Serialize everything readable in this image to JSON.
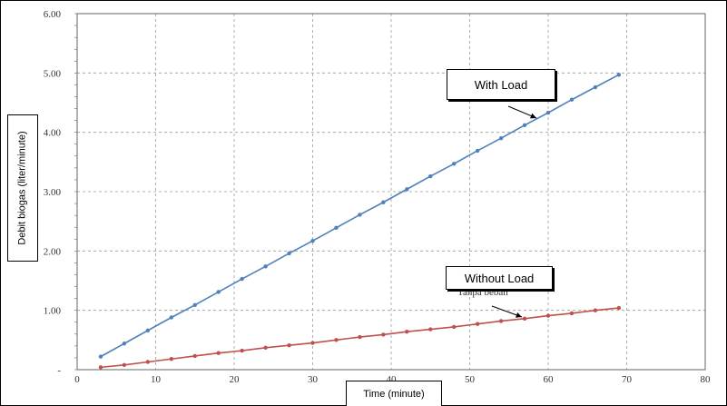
{
  "chart_data": {
    "type": "line",
    "xlabel": "Time (minute)",
    "ylabel": "Debit biogas (liter/minute)",
    "xlim": [
      0,
      80
    ],
    "ylim": [
      0,
      6
    ],
    "xticks": [
      0,
      10,
      20,
      30,
      40,
      50,
      60,
      70,
      80
    ],
    "yticks": [
      "-",
      "1.00",
      "2.00",
      "3.00",
      "4.00",
      "5.00",
      "6.00"
    ],
    "grid": true,
    "series": [
      {
        "name": "With Load",
        "color": "#4f81bd",
        "x": [
          3,
          6,
          9,
          12,
          15,
          18,
          21,
          24,
          27,
          30,
          33,
          36,
          39,
          42,
          45,
          48,
          51,
          54,
          57,
          60,
          63,
          66,
          69
        ],
        "y": [
          0.22,
          0.44,
          0.66,
          0.88,
          1.09,
          1.31,
          1.53,
          1.74,
          1.96,
          2.17,
          2.39,
          2.61,
          2.82,
          3.04,
          3.26,
          3.47,
          3.69,
          3.9,
          4.12,
          4.33,
          4.55,
          4.76,
          4.97
        ]
      },
      {
        "name": "Without Load",
        "color": "#c0504d",
        "x": [
          3,
          6,
          9,
          12,
          15,
          18,
          21,
          24,
          27,
          30,
          33,
          36,
          39,
          42,
          45,
          48,
          51,
          54,
          57,
          60,
          63,
          66,
          69
        ],
        "y": [
          0.04,
          0.08,
          0.13,
          0.18,
          0.23,
          0.28,
          0.32,
          0.37,
          0.41,
          0.45,
          0.5,
          0.55,
          0.59,
          0.64,
          0.68,
          0.72,
          0.77,
          0.82,
          0.86,
          0.91,
          0.95,
          1.0,
          1.04
        ]
      }
    ],
    "annotations": {
      "overlap_text": "Tanpa beban"
    }
  }
}
